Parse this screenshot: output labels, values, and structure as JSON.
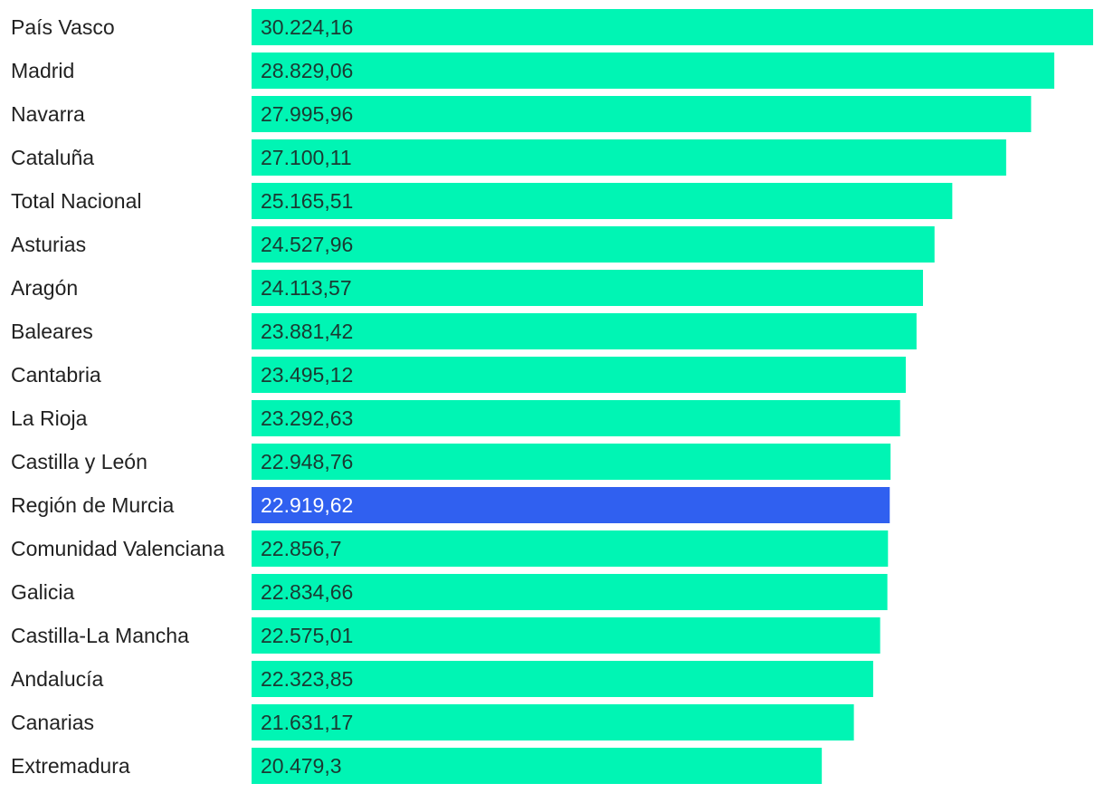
{
  "chart_data": {
    "type": "bar",
    "orientation": "horizontal",
    "title": "",
    "xlabel": "",
    "ylabel": "",
    "grid": false,
    "xlim": [
      0,
      30224.16
    ],
    "categories": [
      "País Vasco",
      "Madrid",
      "Navarra",
      "Cataluña",
      "Total Nacional",
      "Asturias",
      "Aragón",
      "Baleares",
      "Cantabria",
      "La Rioja",
      "Castilla y León",
      "Región de Murcia",
      "Comunidad Valenciana",
      "Galicia",
      "Castilla-La Mancha",
      "Andalucía",
      "Canarias",
      "Extremadura"
    ],
    "values": [
      30224.16,
      28829.06,
      27995.96,
      27100.11,
      25165.51,
      24527.96,
      24113.57,
      23881.42,
      23495.12,
      23292.63,
      22948.76,
      22919.62,
      22856.7,
      22834.66,
      22575.01,
      22323.85,
      21631.17,
      20479.3
    ],
    "value_labels": [
      "30.224,16",
      "28.829,06",
      "27.995,96",
      "27.100,11",
      "25.165,51",
      "24.527,96",
      "24.113,57",
      "23.881,42",
      "23.495,12",
      "23.292,63",
      "22.948,76",
      "22.919,62",
      "22.856,7",
      "22.834,66",
      "22.575,01",
      "22.323,85",
      "21.631,17",
      "20.479,3"
    ],
    "highlight": "Región de Murcia",
    "colors": {
      "bar": "#00f5b4",
      "highlight_bar": "#3060f0",
      "label_text": "#222222",
      "value_text": "#1a3a32",
      "highlight_value_text": "#ffffff"
    }
  }
}
